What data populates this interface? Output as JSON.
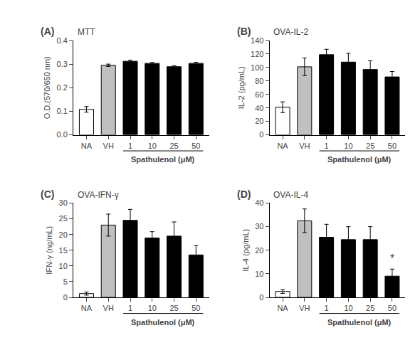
{
  "chart_data": [
    {
      "type": "bar",
      "title": "MTT",
      "ylabel": "O.D.(570/650 nm)",
      "xlabel": "Spathulenol (μM)",
      "categories": [
        "NA",
        "VH",
        "1",
        "10",
        "25",
        "50"
      ],
      "values": [
        0.108,
        0.295,
        0.312,
        0.303,
        0.289,
        0.303
      ],
      "errors": [
        0.012,
        0.005,
        0.005,
        0.004,
        0.004,
        0.005
      ],
      "colors": [
        "white",
        "#c0c0c0",
        "black",
        "black",
        "black",
        "black"
      ],
      "ylim": [
        0,
        0.4
      ],
      "yticks": [
        {
          "value": 0.0,
          "label": "0.0"
        },
        0.1,
        0.2,
        0.3,
        0.4
      ],
      "grid": false,
      "annotations": [
        {
          "text": "(A)"
        }
      ]
    },
    {
      "type": "bar",
      "title": "OVA-IL-2",
      "ylabel": "IL-2 (pg/mL)",
      "xlabel": "Spathulenol (μM)",
      "categories": [
        "NA",
        "VH",
        "1",
        "10",
        "25",
        "50"
      ],
      "values": [
        41,
        101,
        119,
        108,
        97,
        86
      ],
      "errors": [
        8,
        13,
        8,
        13,
        13,
        8
      ],
      "colors": [
        "white",
        "#c0c0c0",
        "black",
        "black",
        "black",
        "black"
      ],
      "ylim": [
        0,
        140
      ],
      "yticks": [
        0,
        20,
        40,
        60,
        80,
        100,
        120,
        140
      ],
      "grid": false,
      "annotations": [
        {
          "text": "(B)"
        }
      ]
    },
    {
      "type": "bar",
      "title": "OVA-IFN-γ",
      "ylabel": "IFN-γ (ng/mL)",
      "xlabel": "Spathulenol (μM)",
      "categories": [
        "NA",
        "VH",
        "1",
        "10",
        "25",
        "50"
      ],
      "values": [
        1.2,
        23.0,
        24.5,
        18.9,
        19.5,
        13.5
      ],
      "errors": [
        0.5,
        3.5,
        3.5,
        2.0,
        4.5,
        3.0
      ],
      "colors": [
        "white",
        "#c0c0c0",
        "black",
        "black",
        "black",
        "black"
      ],
      "ylim": [
        0,
        30
      ],
      "yticks": [
        0,
        5,
        10,
        15,
        20,
        25,
        30
      ],
      "grid": false,
      "annotations": [
        {
          "text": "(C)"
        }
      ]
    },
    {
      "type": "bar",
      "title": "OVA-IL-4",
      "ylabel": "IL-4 (pg/mL)",
      "xlabel": "Spathulenol (μM)",
      "categories": [
        "NA",
        "VH",
        "1",
        "10",
        "25",
        "50"
      ],
      "values": [
        2.5,
        32.5,
        25.5,
        24.5,
        24.5,
        9.0
      ],
      "errors": [
        0.8,
        5.0,
        5.5,
        5.5,
        5.5,
        3.0
      ],
      "colors": [
        "white",
        "#c0c0c0",
        "black",
        "black",
        "black",
        "black"
      ],
      "ylim": [
        0,
        40
      ],
      "yticks": [
        0,
        10,
        20,
        30,
        40
      ],
      "grid": false,
      "annotations": [
        {
          "text": "(D)"
        },
        {
          "text": "*",
          "category": "50"
        }
      ]
    }
  ]
}
